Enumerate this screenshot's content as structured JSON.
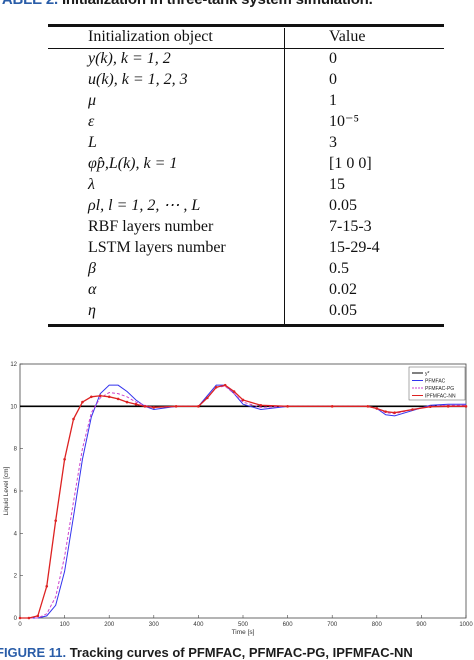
{
  "table_caption": {
    "label": "TABLE 2.",
    "text": "Initialization in three-tank system simulation."
  },
  "table": {
    "headers": [
      "Initialization object",
      "Value"
    ],
    "rows": [
      {
        "object": "y(k), k = 1, 2",
        "value": "0"
      },
      {
        "object": "u(k), k = 1, 2, 3",
        "value": "0"
      },
      {
        "object": "μ",
        "value": "1"
      },
      {
        "object": "ε",
        "value": "10⁻⁵"
      },
      {
        "object": "L",
        "value": "3"
      },
      {
        "object": "φ̂p,L(k), k = 1",
        "value": "[1 0 0]"
      },
      {
        "object": "λ",
        "value": "15"
      },
      {
        "object": "ρl, l = 1, 2, ⋯ , L",
        "value": "0.05"
      },
      {
        "object": "RBF layers number",
        "value": "7-15-3"
      },
      {
        "object": "LSTM layers number",
        "value": "15-29-4"
      },
      {
        "object": "β",
        "value": "0.5"
      },
      {
        "object": "α",
        "value": "0.02"
      },
      {
        "object": "η",
        "value": "0.05"
      }
    ]
  },
  "figure_caption": {
    "label": "FIGURE 11.",
    "text": "Tracking curves of PFMFAC, PFMFAC-PG, IPFMFAC-NN"
  },
  "chart_data": {
    "type": "line",
    "xlabel": "Time [s]",
    "ylabel": "Liquid Level [cm]",
    "xlim": [
      0,
      1000
    ],
    "ylim": [
      0,
      12
    ],
    "xticks": [
      0,
      100,
      200,
      300,
      400,
      500,
      600,
      700,
      800,
      900,
      1000
    ],
    "yticks": [
      0,
      2,
      4,
      6,
      8,
      10,
      12
    ],
    "grid": false,
    "legend_position": "top-right",
    "series": [
      {
        "name": "y*",
        "color": "#000000",
        "x": [
          0,
          1000
        ],
        "y": [
          10,
          10
        ]
      },
      {
        "name": "PFMFAC",
        "color": "#3333ee",
        "x": [
          0,
          40,
          60,
          80,
          100,
          120,
          140,
          160,
          180,
          200,
          220,
          240,
          260,
          280,
          300,
          350,
          400,
          420,
          440,
          460,
          480,
          500,
          540,
          600,
          700,
          780,
          800,
          820,
          840,
          880,
          920,
          960,
          1000
        ],
        "y": [
          0,
          0,
          0.1,
          0.6,
          2.2,
          4.8,
          7.5,
          9.5,
          10.6,
          11.0,
          11.0,
          10.7,
          10.3,
          10.0,
          9.85,
          10.0,
          10.0,
          10.5,
          11.0,
          11.0,
          10.6,
          10.1,
          9.85,
          10.0,
          10.0,
          10.0,
          9.9,
          9.6,
          9.55,
          9.8,
          10.05,
          10.1,
          10.1
        ]
      },
      {
        "name": "PFMFAC-PG",
        "color": "#cc44cc",
        "x": [
          0,
          40,
          60,
          80,
          100,
          120,
          140,
          160,
          180,
          200,
          220,
          240,
          260,
          280,
          300,
          350,
          400,
          420,
          440,
          460,
          480,
          500,
          540,
          600,
          700,
          780,
          800,
          820,
          840,
          880,
          920,
          960,
          1000
        ],
        "y": [
          0,
          0,
          0.2,
          1.0,
          2.9,
          5.5,
          8.0,
          9.7,
          10.4,
          10.65,
          10.6,
          10.45,
          10.2,
          10.05,
          9.95,
          10.0,
          10.0,
          10.4,
          10.9,
          10.95,
          10.6,
          10.2,
          9.95,
          10.0,
          10.0,
          10.0,
          9.9,
          9.7,
          9.65,
          9.85,
          10.0,
          10.05,
          10.05
        ]
      },
      {
        "name": "IPFMFAC-NN",
        "color": "#dd2222",
        "x": [
          0,
          20,
          40,
          60,
          80,
          100,
          120,
          140,
          160,
          180,
          200,
          220,
          240,
          260,
          280,
          300,
          350,
          400,
          420,
          440,
          460,
          480,
          500,
          540,
          600,
          700,
          780,
          800,
          820,
          840,
          880,
          920,
          960,
          1000
        ],
        "y": [
          0,
          0,
          0.1,
          1.5,
          4.6,
          7.5,
          9.4,
          10.2,
          10.45,
          10.5,
          10.45,
          10.35,
          10.2,
          10.1,
          10.0,
          9.95,
          10.0,
          10.0,
          10.4,
          10.9,
          11.0,
          10.7,
          10.3,
          10.05,
          10.0,
          10.0,
          10.0,
          9.9,
          9.75,
          9.7,
          9.85,
          9.98,
          10.0,
          10.0
        ]
      }
    ]
  }
}
